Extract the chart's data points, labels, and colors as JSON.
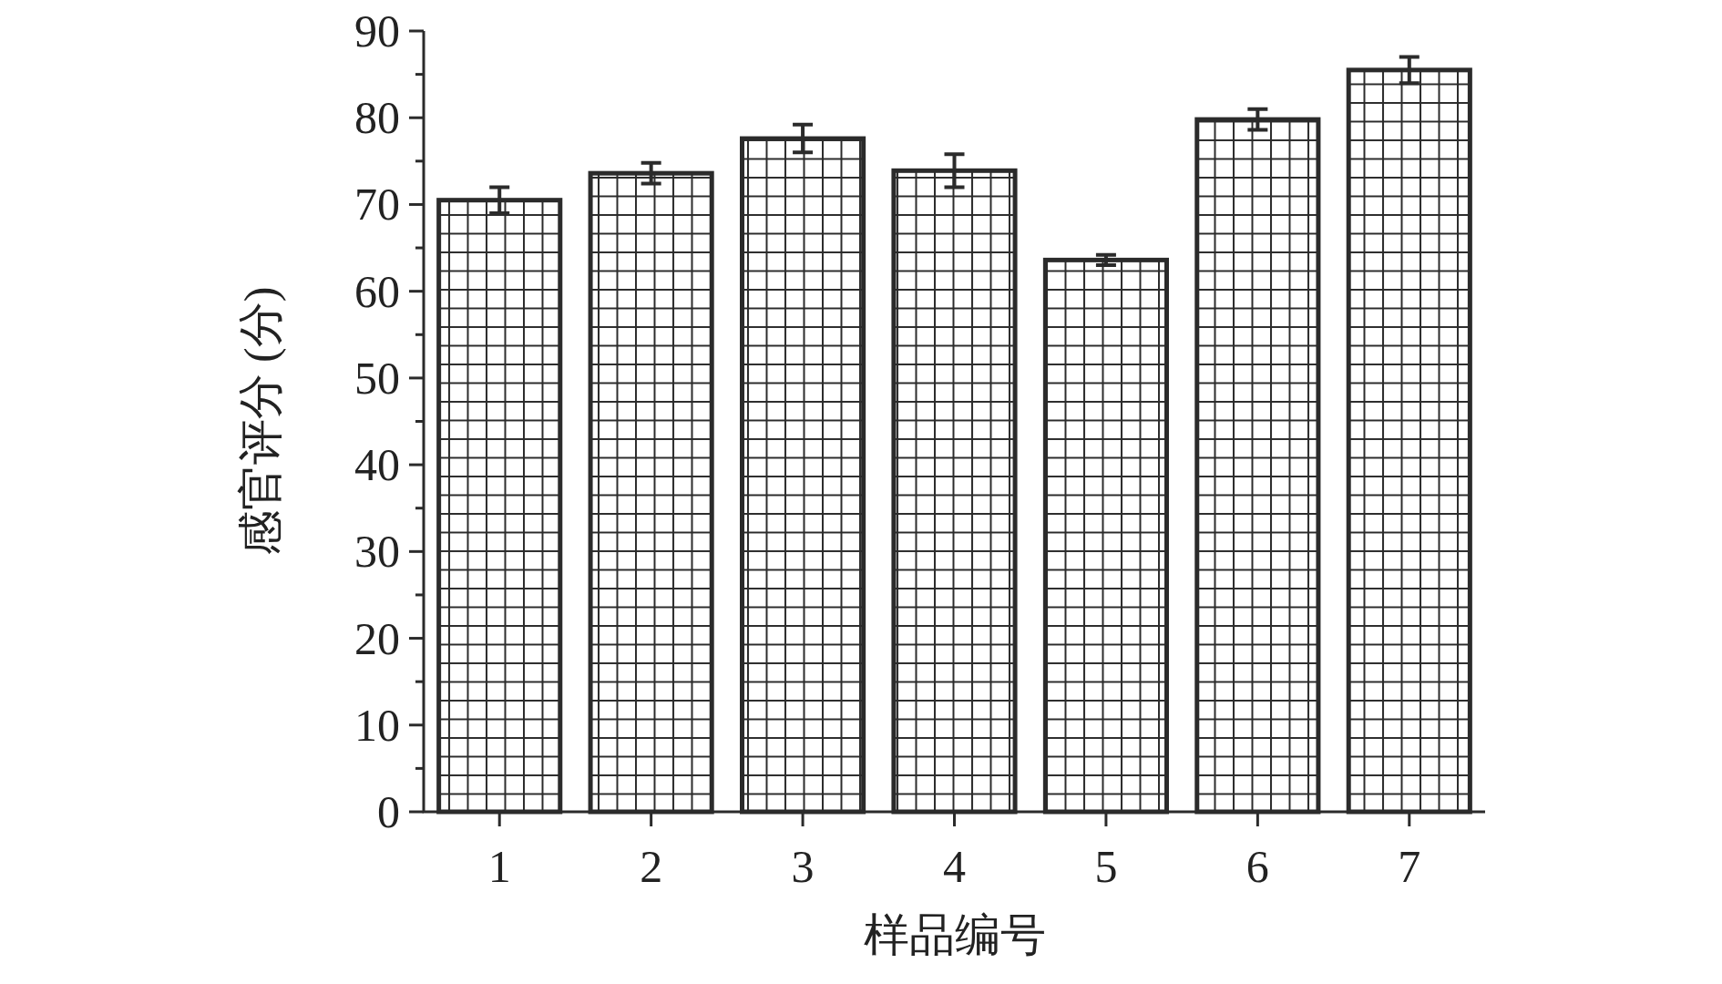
{
  "chart_data": {
    "type": "bar",
    "xlabel": "样品编号",
    "ylabel": "感官评分 (分)",
    "categories": [
      "1",
      "2",
      "3",
      "4",
      "5",
      "6",
      "7"
    ],
    "values": [
      70.5,
      73.6,
      77.6,
      73.9,
      63.6,
      79.8,
      85.5
    ],
    "errors": [
      1.5,
      1.2,
      1.6,
      1.9,
      0.6,
      1.2,
      1.5
    ],
    "color": "#2b2b2b",
    "ylim": [
      0,
      90
    ],
    "yticks": [
      0,
      10,
      20,
      30,
      40,
      50,
      60,
      70,
      80,
      90
    ]
  }
}
